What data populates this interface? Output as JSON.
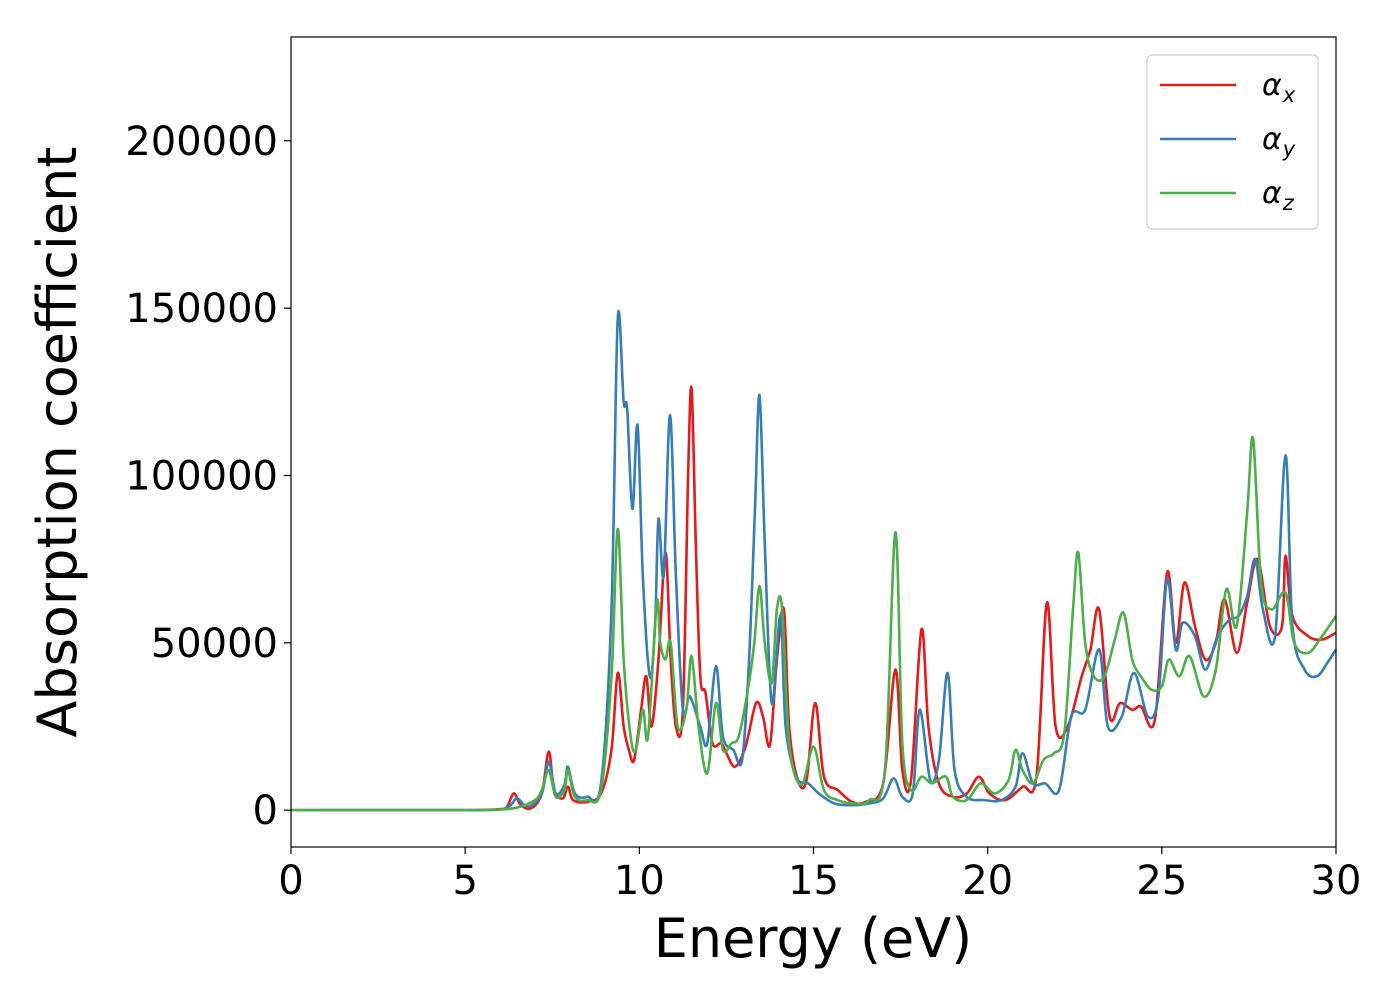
{
  "chart_data": {
    "type": "line",
    "title": "",
    "xlabel": "Energy (eV)",
    "ylabel": "Absorption coefficient",
    "xlim": [
      0,
      30
    ],
    "ylim": [
      -11000,
      231000
    ],
    "xticks": [
      0,
      5,
      10,
      15,
      20,
      25,
      30
    ],
    "yticks": [
      0,
      50000,
      100000,
      150000,
      200000
    ],
    "legend_position": "top-right",
    "grid": false,
    "series": [
      {
        "name": "αx",
        "symbol": "α",
        "subscript": "x",
        "color": "#e41a1c",
        "points": [
          [
            0,
            0
          ],
          [
            3,
            0
          ],
          [
            5,
            0
          ],
          [
            6,
            300
          ],
          [
            6.2,
            1000
          ],
          [
            6.4,
            5000
          ],
          [
            6.6,
            1500
          ],
          [
            6.9,
            600
          ],
          [
            7.2,
            5000
          ],
          [
            7.4,
            17500
          ],
          [
            7.55,
            6000
          ],
          [
            7.8,
            3500
          ],
          [
            7.95,
            7000
          ],
          [
            8.1,
            3000
          ],
          [
            8.5,
            2500
          ],
          [
            8.9,
            5000
          ],
          [
            9.2,
            18000
          ],
          [
            9.38,
            41000
          ],
          [
            9.55,
            25000
          ],
          [
            9.7,
            18000
          ],
          [
            9.85,
            15000
          ],
          [
            10.05,
            30000
          ],
          [
            10.2,
            40000
          ],
          [
            10.35,
            25000
          ],
          [
            10.55,
            45000
          ],
          [
            10.75,
            77000
          ],
          [
            10.9,
            45000
          ],
          [
            11.05,
            25000
          ],
          [
            11.25,
            30000
          ],
          [
            11.4,
            100000
          ],
          [
            11.5,
            126000
          ],
          [
            11.62,
            80000
          ],
          [
            11.75,
            40000
          ],
          [
            11.9,
            35000
          ],
          [
            12.1,
            20000
          ],
          [
            12.35,
            20000
          ],
          [
            12.5,
            17000
          ],
          [
            12.75,
            13000
          ],
          [
            13.05,
            19000
          ],
          [
            13.35,
            32000
          ],
          [
            13.55,
            28000
          ],
          [
            13.75,
            19500
          ],
          [
            13.95,
            45000
          ],
          [
            14.15,
            60000
          ],
          [
            14.3,
            25000
          ],
          [
            14.55,
            9000
          ],
          [
            14.8,
            9000
          ],
          [
            15.05,
            32000
          ],
          [
            15.3,
            10000
          ],
          [
            15.7,
            6000
          ],
          [
            16.1,
            2500
          ],
          [
            16.5,
            2500
          ],
          [
            17.0,
            8000
          ],
          [
            17.35,
            42000
          ],
          [
            17.55,
            12000
          ],
          [
            17.8,
            9000
          ],
          [
            18.1,
            54000
          ],
          [
            18.3,
            25000
          ],
          [
            18.6,
            8000
          ],
          [
            19.0,
            4000
          ],
          [
            19.4,
            5000
          ],
          [
            19.75,
            10000
          ],
          [
            20.05,
            5000
          ],
          [
            20.5,
            3000
          ],
          [
            21.0,
            7000
          ],
          [
            21.4,
            10000
          ],
          [
            21.7,
            62000
          ],
          [
            21.95,
            25000
          ],
          [
            22.3,
            25000
          ],
          [
            22.7,
            40000
          ],
          [
            22.95,
            48000
          ],
          [
            23.2,
            60000
          ],
          [
            23.5,
            28000
          ],
          [
            23.8,
            32000
          ],
          [
            24.15,
            30000
          ],
          [
            24.4,
            31000
          ],
          [
            24.8,
            27000
          ],
          [
            25.15,
            71000
          ],
          [
            25.4,
            50000
          ],
          [
            25.65,
            68000
          ],
          [
            25.95,
            55000
          ],
          [
            26.25,
            45000
          ],
          [
            26.55,
            50000
          ],
          [
            26.8,
            63000
          ],
          [
            27.15,
            47000
          ],
          [
            27.45,
            62000
          ],
          [
            27.75,
            75000
          ],
          [
            28.1,
            55000
          ],
          [
            28.45,
            55000
          ],
          [
            28.55,
            76000
          ],
          [
            28.75,
            58000
          ],
          [
            29.2,
            52000
          ],
          [
            29.6,
            51000
          ],
          [
            30,
            53000
          ]
        ]
      },
      {
        "name": "αy",
        "symbol": "α",
        "subscript": "y",
        "color": "#377eb8",
        "points": [
          [
            0,
            0
          ],
          [
            3,
            0
          ],
          [
            5,
            0
          ],
          [
            6,
            200
          ],
          [
            6.3,
            1500
          ],
          [
            6.5,
            3500
          ],
          [
            6.8,
            1000
          ],
          [
            7.2,
            5000
          ],
          [
            7.4,
            14500
          ],
          [
            7.6,
            5000
          ],
          [
            7.85,
            7500
          ],
          [
            7.95,
            13000
          ],
          [
            8.15,
            5000
          ],
          [
            8.5,
            4000
          ],
          [
            8.9,
            8000
          ],
          [
            9.2,
            60000
          ],
          [
            9.38,
            147000
          ],
          [
            9.55,
            122000
          ],
          [
            9.65,
            120000
          ],
          [
            9.8,
            90000
          ],
          [
            9.95,
            115000
          ],
          [
            10.1,
            70000
          ],
          [
            10.3,
            40000
          ],
          [
            10.45,
            55000
          ],
          [
            10.55,
            87000
          ],
          [
            10.7,
            70000
          ],
          [
            10.88,
            118000
          ],
          [
            11.05,
            70000
          ],
          [
            11.25,
            30000
          ],
          [
            11.45,
            34000
          ],
          [
            11.75,
            25000
          ],
          [
            11.95,
            20000
          ],
          [
            12.2,
            43000
          ],
          [
            12.4,
            22000
          ],
          [
            12.7,
            18000
          ],
          [
            12.95,
            15000
          ],
          [
            13.15,
            45000
          ],
          [
            13.32,
            90000
          ],
          [
            13.45,
            124000
          ],
          [
            13.6,
            80000
          ],
          [
            13.8,
            32000
          ],
          [
            14.05,
            58000
          ],
          [
            14.2,
            25000
          ],
          [
            14.5,
            10000
          ],
          [
            14.85,
            8000
          ],
          [
            15.15,
            5000
          ],
          [
            15.6,
            2000
          ],
          [
            16.1,
            1500
          ],
          [
            16.6,
            2000
          ],
          [
            17.0,
            3500
          ],
          [
            17.3,
            9500
          ],
          [
            17.55,
            4000
          ],
          [
            17.85,
            5000
          ],
          [
            18.05,
            30000
          ],
          [
            18.35,
            9000
          ],
          [
            18.6,
            15000
          ],
          [
            18.85,
            41000
          ],
          [
            19.05,
            12000
          ],
          [
            19.4,
            4000
          ],
          [
            19.9,
            3000
          ],
          [
            20.4,
            3000
          ],
          [
            20.8,
            7000
          ],
          [
            21.0,
            17000
          ],
          [
            21.3,
            8000
          ],
          [
            21.65,
            8000
          ],
          [
            22.05,
            6000
          ],
          [
            22.4,
            28000
          ],
          [
            22.8,
            30000
          ],
          [
            23.2,
            48000
          ],
          [
            23.45,
            25000
          ],
          [
            23.85,
            28000
          ],
          [
            24.2,
            41000
          ],
          [
            24.6,
            28000
          ],
          [
            24.9,
            34000
          ],
          [
            25.15,
            69000
          ],
          [
            25.4,
            48000
          ],
          [
            25.6,
            56000
          ],
          [
            25.95,
            52000
          ],
          [
            26.25,
            42000
          ],
          [
            26.6,
            52000
          ],
          [
            26.95,
            57000
          ],
          [
            27.2,
            58000
          ],
          [
            27.45,
            64000
          ],
          [
            27.68,
            75000
          ],
          [
            27.9,
            60000
          ],
          [
            28.25,
            52000
          ],
          [
            28.55,
            106000
          ],
          [
            28.75,
            55000
          ],
          [
            29.1,
            42000
          ],
          [
            29.45,
            40000
          ],
          [
            29.75,
            44000
          ],
          [
            30,
            48000
          ]
        ]
      },
      {
        "name": "αz",
        "symbol": "α",
        "subscript": "z",
        "color": "#4daf4a",
        "points": [
          [
            0,
            0
          ],
          [
            3,
            0
          ],
          [
            5,
            0
          ],
          [
            6,
            200
          ],
          [
            6.5,
            800
          ],
          [
            7.0,
            3000
          ],
          [
            7.2,
            6000
          ],
          [
            7.4,
            12000
          ],
          [
            7.6,
            4000
          ],
          [
            7.85,
            6000
          ],
          [
            7.95,
            12000
          ],
          [
            8.15,
            4000
          ],
          [
            8.5,
            3000
          ],
          [
            8.9,
            6000
          ],
          [
            9.2,
            40000
          ],
          [
            9.38,
            84000
          ],
          [
            9.55,
            45000
          ],
          [
            9.75,
            22000
          ],
          [
            9.9,
            18000
          ],
          [
            10.1,
            30000
          ],
          [
            10.25,
            22000
          ],
          [
            10.5,
            62000
          ],
          [
            10.6,
            50000
          ],
          [
            10.75,
            45000
          ],
          [
            10.9,
            50000
          ],
          [
            11.1,
            25000
          ],
          [
            11.35,
            30000
          ],
          [
            11.5,
            46000
          ],
          [
            11.7,
            25000
          ],
          [
            11.95,
            11000
          ],
          [
            12.2,
            32000
          ],
          [
            12.4,
            18000
          ],
          [
            12.65,
            20000
          ],
          [
            12.85,
            22000
          ],
          [
            13.1,
            35000
          ],
          [
            13.3,
            50000
          ],
          [
            13.45,
            67000
          ],
          [
            13.6,
            50000
          ],
          [
            13.8,
            38000
          ],
          [
            13.95,
            60000
          ],
          [
            14.1,
            60000
          ],
          [
            14.3,
            20000
          ],
          [
            14.65,
            7500
          ],
          [
            15.0,
            19000
          ],
          [
            15.3,
            6000
          ],
          [
            15.7,
            3000
          ],
          [
            16.2,
            2000
          ],
          [
            16.6,
            3000
          ],
          [
            17.05,
            12000
          ],
          [
            17.35,
            83000
          ],
          [
            17.55,
            20000
          ],
          [
            17.8,
            6000
          ],
          [
            18.1,
            10000
          ],
          [
            18.4,
            8000
          ],
          [
            18.8,
            10000
          ],
          [
            19.0,
            4000
          ],
          [
            19.4,
            3000
          ],
          [
            19.8,
            8000
          ],
          [
            20.2,
            5000
          ],
          [
            20.6,
            9000
          ],
          [
            20.8,
            18000
          ],
          [
            21.0,
            12000
          ],
          [
            21.3,
            8000
          ],
          [
            21.6,
            15000
          ],
          [
            21.9,
            17000
          ],
          [
            22.2,
            23000
          ],
          [
            22.45,
            60000
          ],
          [
            22.6,
            77000
          ],
          [
            22.8,
            50000
          ],
          [
            23.05,
            40000
          ],
          [
            23.35,
            40000
          ],
          [
            23.65,
            51000
          ],
          [
            23.9,
            59000
          ],
          [
            24.15,
            45000
          ],
          [
            24.4,
            40000
          ],
          [
            24.7,
            36000
          ],
          [
            25.0,
            37000
          ],
          [
            25.2,
            45000
          ],
          [
            25.5,
            40000
          ],
          [
            25.8,
            46000
          ],
          [
            26.2,
            34000
          ],
          [
            26.55,
            42000
          ],
          [
            26.85,
            66000
          ],
          [
            27.15,
            55000
          ],
          [
            27.45,
            89000
          ],
          [
            27.62,
            111000
          ],
          [
            27.85,
            68000
          ],
          [
            28.15,
            60000
          ],
          [
            28.55,
            65000
          ],
          [
            28.8,
            50000
          ],
          [
            29.2,
            47000
          ],
          [
            29.6,
            52000
          ],
          [
            30,
            58000
          ]
        ]
      }
    ]
  }
}
